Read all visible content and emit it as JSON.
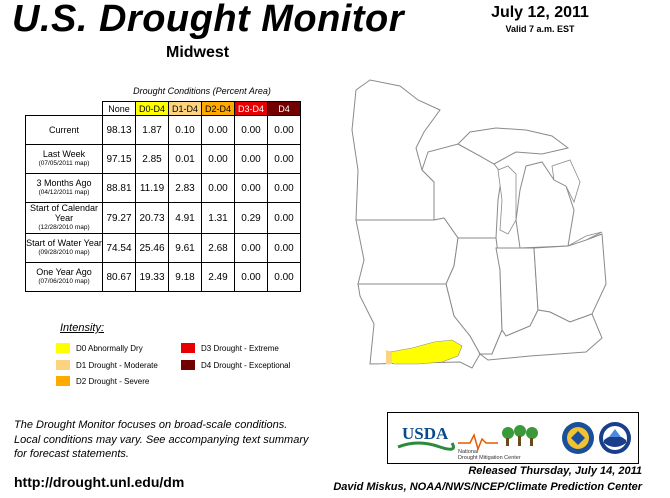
{
  "title": "U.S. Drought Monitor",
  "region": "Midwest",
  "date": "July 12, 2011",
  "valid": "Valid 7 a.m. EST",
  "table": {
    "caption": "Drought Conditions (Percent Area)",
    "columns": [
      "None",
      "D0-D4",
      "D1-D4",
      "D2-D4",
      "D3-D4",
      "D4"
    ],
    "column_colors": [
      "#ffffff",
      "#ffff00",
      "#fcd37f",
      "#ffaa00",
      "#e60000",
      "#730000"
    ],
    "column_text_colors": [
      "#000000",
      "#000000",
      "#000000",
      "#000000",
      "#ffffff",
      "#ffffff"
    ],
    "rows": [
      {
        "label": "Current",
        "date": "",
        "values": [
          "98.13",
          "1.87",
          "0.10",
          "0.00",
          "0.00",
          "0.00"
        ]
      },
      {
        "label": "Last Week",
        "date": "(07/05/2011 map)",
        "values": [
          "97.15",
          "2.85",
          "0.01",
          "0.00",
          "0.00",
          "0.00"
        ]
      },
      {
        "label": "3 Months Ago",
        "date": "(04/12/2011 map)",
        "values": [
          "88.81",
          "11.19",
          "2.83",
          "0.00",
          "0.00",
          "0.00"
        ]
      },
      {
        "label": "Start of Calendar Year",
        "date": "(12/28/2010 map)",
        "values": [
          "79.27",
          "20.73",
          "4.91",
          "1.31",
          "0.29",
          "0.00"
        ]
      },
      {
        "label": "Start of Water Year",
        "date": "(09/28/2010 map)",
        "values": [
          "74.54",
          "25.46",
          "9.61",
          "2.68",
          "0.00",
          "0.00"
        ]
      },
      {
        "label": "One Year Ago",
        "date": "(07/06/2010 map)",
        "values": [
          "80.67",
          "19.33",
          "9.18",
          "2.49",
          "0.00",
          "0.00"
        ]
      }
    ]
  },
  "legend": {
    "title": "Intensity:",
    "items": [
      {
        "label": "D0 Abnormally Dry",
        "color": "#ffff00"
      },
      {
        "label": "D1 Drought - Moderate",
        "color": "#fcd37f"
      },
      {
        "label": "D2 Drought - Severe",
        "color": "#ffaa00"
      },
      {
        "label": "D3 Drought - Extreme",
        "color": "#e60000"
      },
      {
        "label": "D4 Drought - Exceptional",
        "color": "#730000"
      }
    ]
  },
  "footnote": [
    "The Drought Monitor focuses on broad-scale conditions.",
    "Local conditions may vary. See accompanying text summary",
    "for forecast statements."
  ],
  "url": "http://drought.unl.edu/dm",
  "logos": {
    "usda": "USDA",
    "ndmc_line1": "National",
    "ndmc_line2": "Drought Mitigation Center"
  },
  "released": "Released Thursday, July 14, 2011",
  "author": "David Miskus, NOAA/NWS/NCEP/Climate Prediction Center",
  "map_colors": {
    "background": "#ffffff",
    "state_border": "#8a8a8a",
    "d0": "#ffff00",
    "d1": "#fcd37f",
    "water": "#ffffff"
  }
}
